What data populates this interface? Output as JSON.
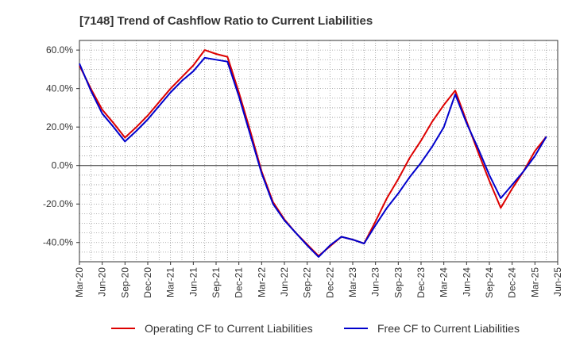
{
  "chart_data": {
    "type": "line",
    "title": "[7148]  Trend of Cashflow Ratio to Current Liabilities",
    "xlabel": "",
    "ylabel": "",
    "x_ticks": [
      "Mar-20",
      "Jun-20",
      "Sep-20",
      "Dec-20",
      "Mar-21",
      "Jun-21",
      "Sep-21",
      "Dec-21",
      "Mar-22",
      "Jun-22",
      "Sep-22",
      "Dec-22",
      "Mar-23",
      "Jun-23",
      "Sep-23",
      "Dec-23",
      "Mar-24",
      "Jun-24",
      "Sep-24",
      "Dec-24",
      "Mar-25",
      "Jun-25"
    ],
    "y_ticks": [
      {
        "value": 60,
        "label": "60.0%"
      },
      {
        "value": 40,
        "label": "40.0%"
      },
      {
        "value": 20,
        "label": "20.0%"
      },
      {
        "value": 0,
        "label": "0.0%"
      },
      {
        "value": -20,
        "label": "-20.0%"
      },
      {
        "value": -40,
        "label": "-40.0%"
      }
    ],
    "ylim": [
      -50,
      65
    ],
    "grid": true,
    "legend_position": "bottom",
    "series": [
      {
        "name": "Operating CF to Current Liabilities",
        "color": "#dd0000",
        "values": [
          52,
          40,
          29,
          22,
          14.5,
          20,
          26,
          33,
          40,
          46,
          52,
          60,
          58,
          56.5,
          38,
          18,
          -3,
          -19,
          -28,
          -35,
          -41,
          -47,
          -42,
          -37,
          -38.5,
          -40.5,
          -29,
          -17,
          -7,
          4,
          13,
          23,
          31.5,
          39,
          23,
          7,
          -8,
          -22,
          -12,
          -3,
          7.5,
          15
        ]
      },
      {
        "name": "Free CF to Current Liabilities",
        "color": "#0000cc",
        "values": [
          53,
          39,
          27,
          20,
          12.5,
          18,
          24,
          31,
          38,
          44,
          49,
          56,
          55,
          54,
          36,
          16,
          -4,
          -20,
          -28.5,
          -35,
          -41.5,
          -47.5,
          -41.5,
          -37,
          -38.5,
          -40.5,
          -31,
          -22,
          -14.5,
          -6,
          1.5,
          10,
          20,
          37,
          22,
          9,
          -5,
          -17,
          -10,
          -3,
          5,
          15
        ]
      }
    ]
  }
}
